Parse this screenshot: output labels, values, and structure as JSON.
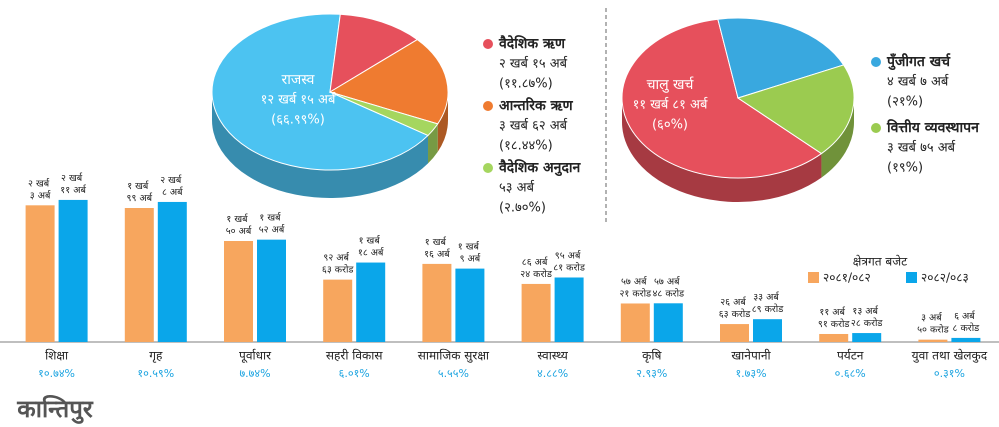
{
  "chart_data": [
    {
      "type": "pie",
      "categories": [
        "राजस्व",
        "वैदेशिक ऋण",
        "आन्तरिक ऋण",
        "वैदेशिक अनुदान"
      ],
      "values": [
        66.99,
        11.87,
        18.44,
        2.7
      ],
      "value_labels": [
        "(६६.९९%)",
        "(११.८७%)",
        "(१८.४४%)",
        "(२.७०%)"
      ],
      "amount_labels": [
        "१२ खर्ब १५ अर्ब",
        "२ खर्ब १५ अर्ब",
        "३ खर्ब ६२ अर्ब",
        "५३ अर्ब"
      ],
      "colors": [
        "#4cc3f1",
        "#e6505c",
        "#ef7b30",
        "#a5d65f"
      ]
    },
    {
      "type": "pie",
      "categories": [
        "चालु खर्च",
        "पुँजीगत खर्च",
        "वित्तीय व्यवस्थापन"
      ],
      "values": [
        60,
        21,
        19
      ],
      "value_labels": [
        "(६०%)",
        "(२१%)",
        "(१९%)"
      ],
      "amount_labels": [
        "११ खर्ब ८१ अर्ब",
        "४ खर्ब ७ अर्ब",
        "३ खर्ब ७५ अर्ब"
      ],
      "colors": [
        "#e6505c",
        "#39a8df",
        "#9bcb50"
      ]
    },
    {
      "type": "bar",
      "legend_title": "क्षेत्रगत बजेट",
      "categories": [
        "शिक्षा",
        "गृह",
        "पूर्वाधार",
        "सहरी विकास",
        "सामाजिक सुरक्षा",
        "स्वास्थ्य",
        "कृषि",
        "खानेपानी",
        "पर्यटन",
        "युवा तथा खेलकुद"
      ],
      "shares": [
        "१०.७४%",
        "१०.५९%",
        "७.७४%",
        "६.०१%",
        "५.५५%",
        "४.८८%",
        "२.९३%",
        "१.७३%",
        "०.६८%",
        "०.३१%"
      ],
      "ylim": [
        0,
        300
      ],
      "series": [
        {
          "name": "२०८१/०८२",
          "color": "#f7a65e",
          "values": [
            203,
            199,
            150,
            92.63,
            116,
            86.24,
            57.21,
            26.63,
            11.91,
            3.5
          ],
          "value_labels": [
            "२ खर्ब ३ अर्ब",
            "१ खर्ब ९९ अर्ब",
            "१ खर्ब ५० अर्ब",
            "९२ अर्ब ६३ करोड",
            "१ खर्ब १६ अर्ब",
            "८६ अर्ब २४ करोड",
            "५७ अर्ब २१ करोड",
            "२६ अर्ब ६३ करोड",
            "११ अर्ब ९१ करोड",
            "३ अर्ब ५० करोड"
          ]
        },
        {
          "name": "२०८२/०८३",
          "color": "#0aa6ea",
          "values": [
            211,
            208,
            152,
            118,
            109,
            95.81,
            57.48,
            33.89,
            13.28,
            6.08
          ],
          "value_labels": [
            "२ खर्ब ११ अर्ब",
            "२ खर्ब ८ अर्ब",
            "१ खर्ब ५२ अर्ब",
            "१ खर्ब १८ अर्ब",
            "१ खर्ब ९ अर्ब",
            "९५ अर्ब ८१ करोड",
            "५७ अर्ब ४८ करोड",
            "३३ अर्ब ८९ करोड",
            "१३ अर्ब २८ करोड",
            "६ अर्ब ८ करोड"
          ]
        }
      ]
    }
  ],
  "logo": "कान्तिपुर"
}
